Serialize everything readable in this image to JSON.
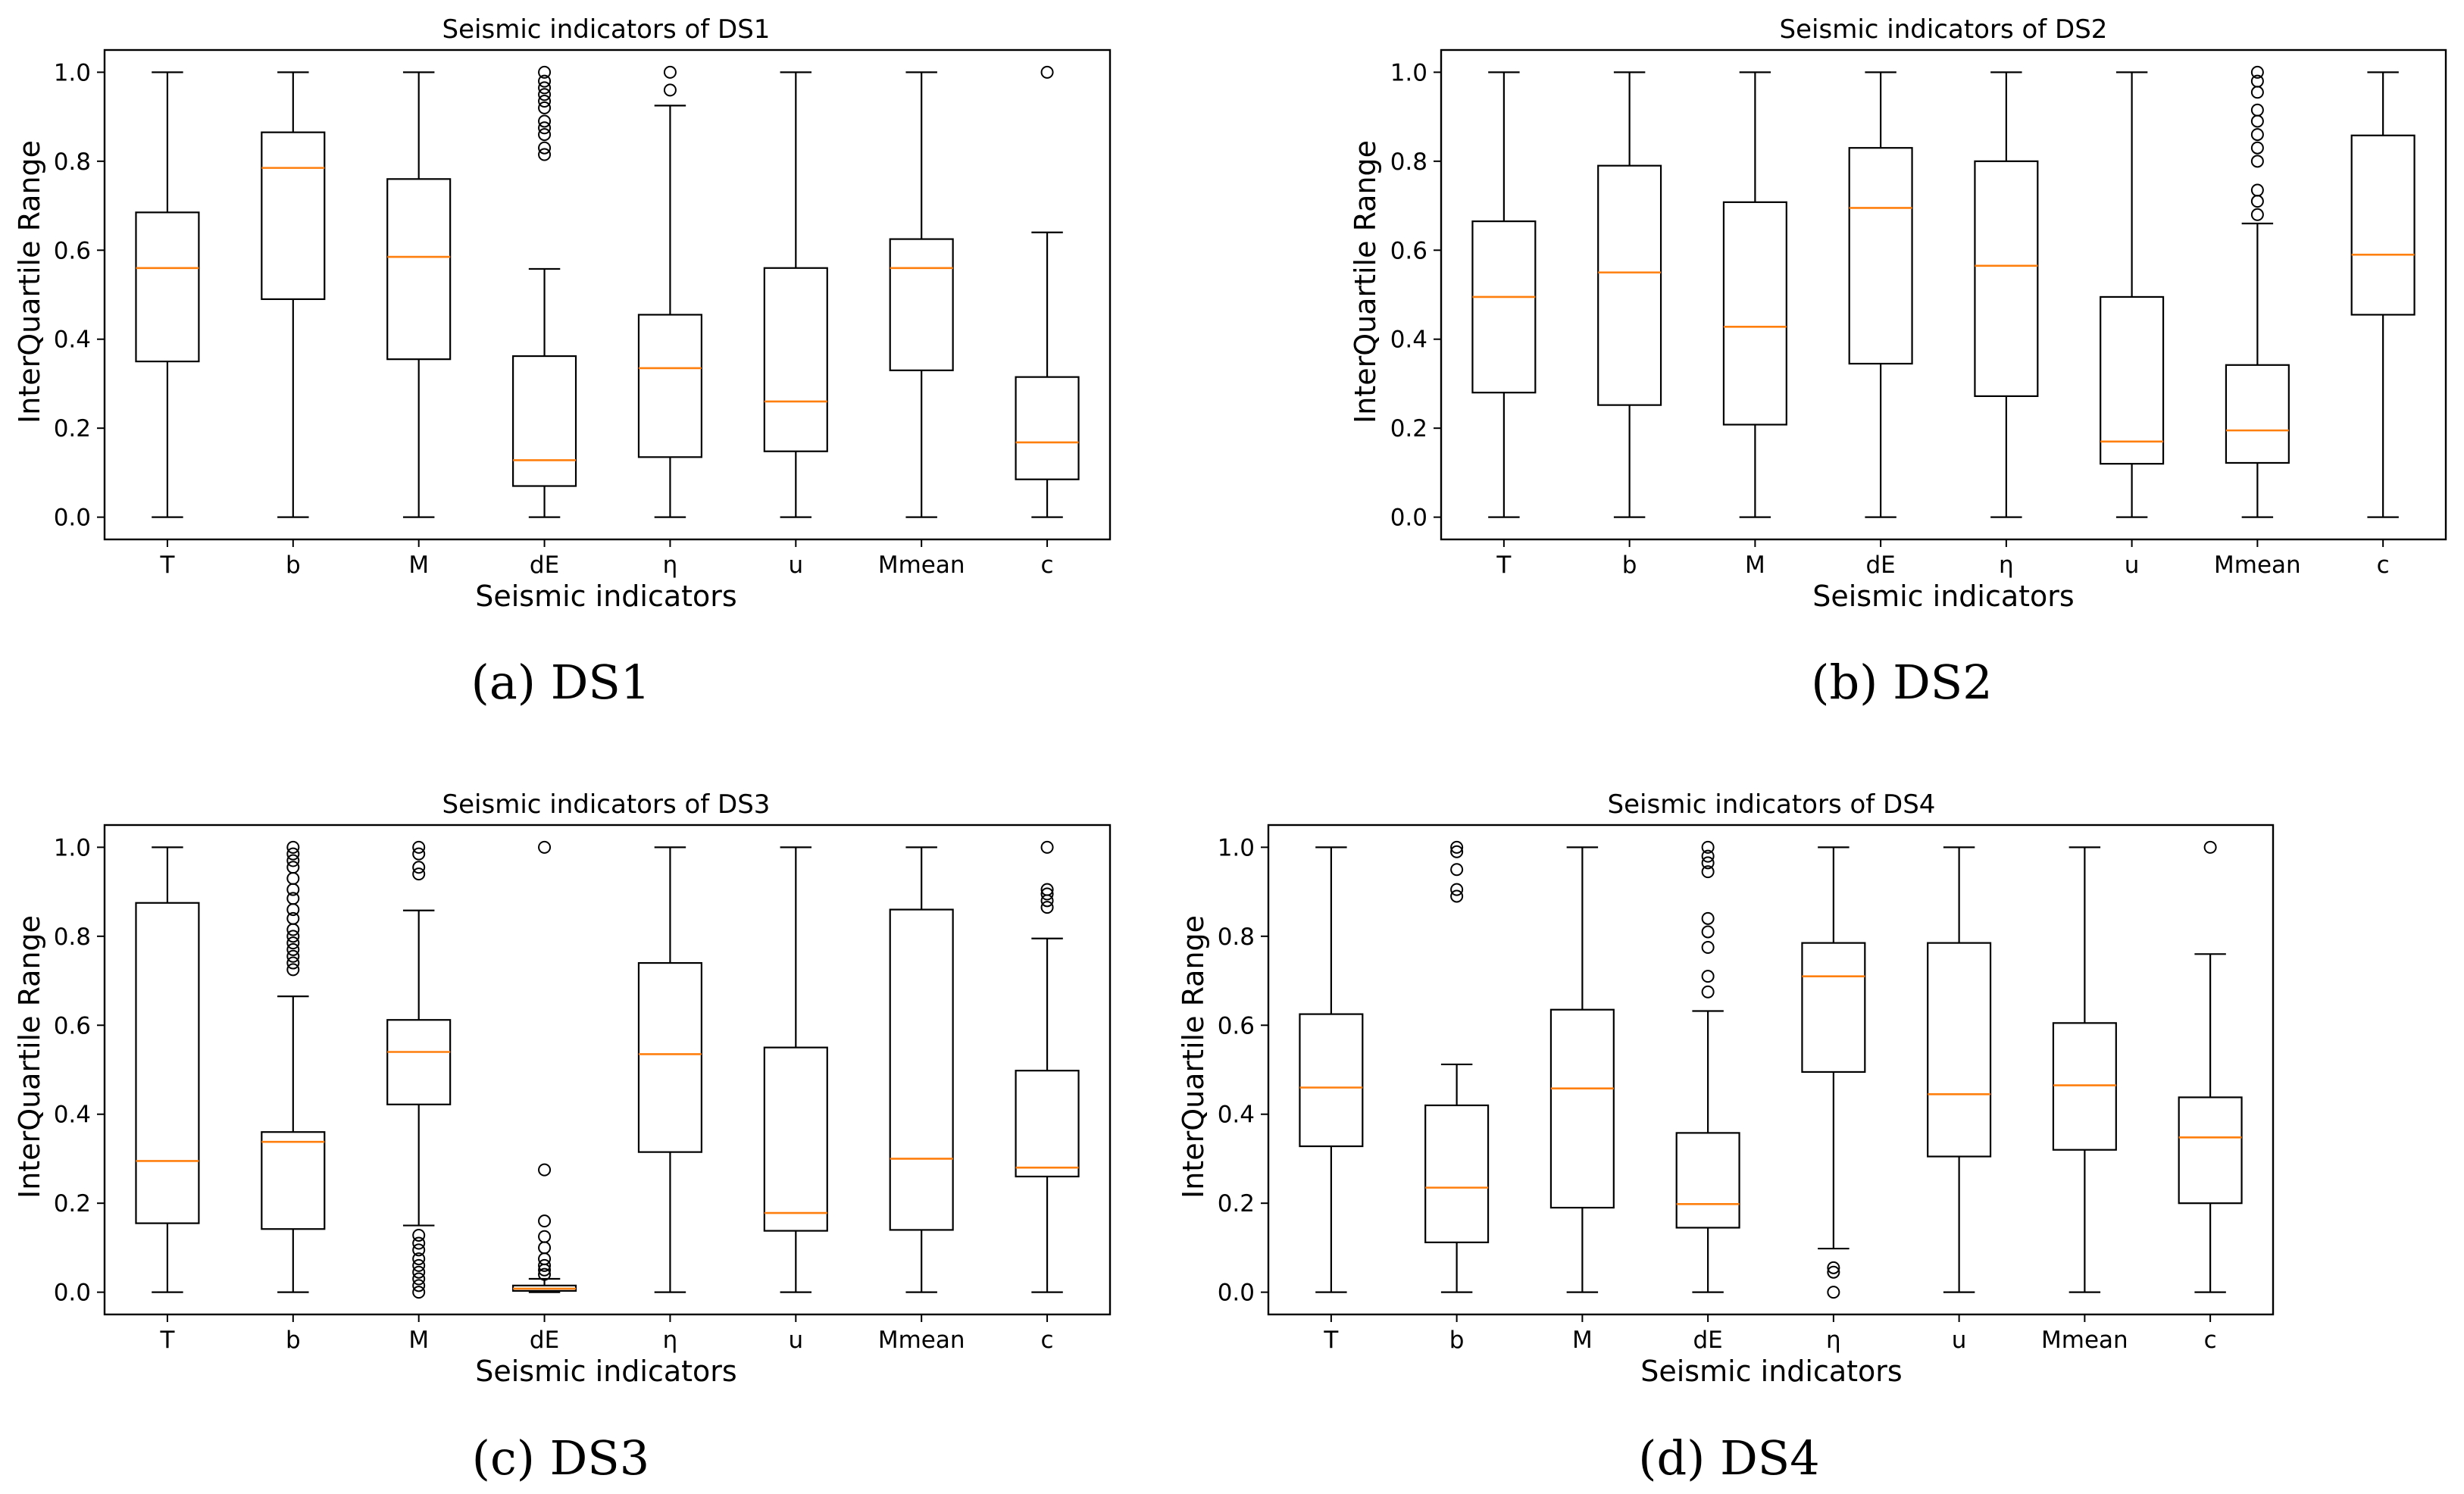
{
  "chart_data": [
    {
      "id": "a",
      "type": "boxplot",
      "caption": "(a)  DS1",
      "title": "Seismic indicators of DS1",
      "xlabel": "Seismic indicators",
      "ylabel": "InterQuartile Range",
      "ylim": [
        -0.05,
        1.05
      ],
      "yticks": [
        "0.0",
        "0.2",
        "0.4",
        "0.6",
        "0.8",
        "1.0"
      ],
      "colors": {
        "box": "#000000",
        "median": "#ff7f0e"
      },
      "categories": [
        "T",
        "b",
        "M",
        "dE",
        "η",
        "u",
        "Mmean",
        "c"
      ],
      "boxes": [
        {
          "label": "T",
          "whislo": 0.0,
          "q1": 0.35,
          "med": 0.56,
          "q3": 0.685,
          "whishi": 1.0,
          "fliers": []
        },
        {
          "label": "b",
          "whislo": 0.0,
          "q1": 0.49,
          "med": 0.785,
          "q3": 0.865,
          "whishi": 1.0,
          "fliers": []
        },
        {
          "label": "M",
          "whislo": 0.0,
          "q1": 0.355,
          "med": 0.585,
          "q3": 0.76,
          "whishi": 1.0,
          "fliers": []
        },
        {
          "label": "dE",
          "whislo": 0.0,
          "q1": 0.07,
          "med": 0.128,
          "q3": 0.362,
          "whishi": 0.558,
          "fliers": [
            0.815,
            0.83,
            0.86,
            0.875,
            0.89,
            0.92,
            0.935,
            0.95,
            0.965,
            0.98,
            1.0
          ]
        },
        {
          "label": "η",
          "whislo": 0.0,
          "q1": 0.135,
          "med": 0.335,
          "q3": 0.455,
          "whishi": 0.925,
          "fliers": [
            0.96,
            1.0
          ]
        },
        {
          "label": "u",
          "whislo": 0.0,
          "q1": 0.148,
          "med": 0.26,
          "q3": 0.56,
          "whishi": 1.0,
          "fliers": []
        },
        {
          "label": "Mmean",
          "whislo": 0.0,
          "q1": 0.33,
          "med": 0.56,
          "q3": 0.625,
          "whishi": 1.0,
          "fliers": []
        },
        {
          "label": "c",
          "whislo": 0.0,
          "q1": 0.085,
          "med": 0.168,
          "q3": 0.315,
          "whishi": 0.64,
          "fliers": [
            1.0
          ]
        }
      ]
    },
    {
      "id": "b",
      "type": "boxplot",
      "caption": "(b)  DS2",
      "title": "Seismic indicators of DS2",
      "xlabel": "Seismic indicators",
      "ylabel": "InterQuartile Range",
      "ylim": [
        -0.05,
        1.05
      ],
      "yticks": [
        "0.0",
        "0.2",
        "0.4",
        "0.6",
        "0.8",
        "1.0"
      ],
      "colors": {
        "box": "#000000",
        "median": "#ff7f0e"
      },
      "categories": [
        "T",
        "b",
        "M",
        "dE",
        "η",
        "u",
        "Mmean",
        "c"
      ],
      "boxes": [
        {
          "label": "T",
          "whislo": 0.0,
          "q1": 0.28,
          "med": 0.495,
          "q3": 0.665,
          "whishi": 1.0,
          "fliers": []
        },
        {
          "label": "b",
          "whislo": 0.0,
          "q1": 0.252,
          "med": 0.55,
          "q3": 0.79,
          "whishi": 1.0,
          "fliers": []
        },
        {
          "label": "M",
          "whislo": 0.0,
          "q1": 0.208,
          "med": 0.428,
          "q3": 0.708,
          "whishi": 1.0,
          "fliers": []
        },
        {
          "label": "dE",
          "whislo": 0.0,
          "q1": 0.345,
          "med": 0.695,
          "q3": 0.83,
          "whishi": 1.0,
          "fliers": []
        },
        {
          "label": "η",
          "whislo": 0.0,
          "q1": 0.272,
          "med": 0.565,
          "q3": 0.8,
          "whishi": 1.0,
          "fliers": []
        },
        {
          "label": "u",
          "whislo": 0.0,
          "q1": 0.12,
          "med": 0.17,
          "q3": 0.495,
          "whishi": 1.0,
          "fliers": []
        },
        {
          "label": "Mmean",
          "whislo": 0.0,
          "q1": 0.122,
          "med": 0.195,
          "q3": 0.342,
          "whishi": 0.66,
          "fliers": [
            0.68,
            0.71,
            0.735,
            0.8,
            0.83,
            0.86,
            0.89,
            0.915,
            0.955,
            0.98,
            1.0
          ]
        },
        {
          "label": "c",
          "whislo": 0.0,
          "q1": 0.455,
          "med": 0.59,
          "q3": 0.858,
          "whishi": 1.0,
          "fliers": []
        }
      ]
    },
    {
      "id": "c",
      "type": "boxplot",
      "caption": "(c)  DS3",
      "title": "Seismic indicators of DS3",
      "xlabel": "Seismic indicators",
      "ylabel": "InterQuartile Range",
      "ylim": [
        -0.05,
        1.05
      ],
      "yticks": [
        "0.0",
        "0.2",
        "0.4",
        "0.6",
        "0.8",
        "1.0"
      ],
      "colors": {
        "box": "#000000",
        "median": "#ff7f0e"
      },
      "categories": [
        "T",
        "b",
        "M",
        "dE",
        "η",
        "u",
        "Mmean",
        "c"
      ],
      "boxes": [
        {
          "label": "T",
          "whislo": 0.0,
          "q1": 0.155,
          "med": 0.295,
          "q3": 0.875,
          "whishi": 1.0,
          "fliers": []
        },
        {
          "label": "b",
          "whislo": 0.0,
          "q1": 0.142,
          "med": 0.338,
          "q3": 0.36,
          "whishi": 0.665,
          "fliers": [
            0.725,
            0.74,
            0.755,
            0.77,
            0.785,
            0.8,
            0.815,
            0.84,
            0.86,
            0.885,
            0.905,
            0.93,
            0.955,
            0.97,
            0.985,
            1.0
          ]
        },
        {
          "label": "M",
          "whislo": 0.15,
          "q1": 0.422,
          "med": 0.54,
          "q3": 0.612,
          "whishi": 0.858,
          "fliers": [
            0.0,
            0.015,
            0.03,
            0.045,
            0.06,
            0.075,
            0.095,
            0.11,
            0.128,
            0.94,
            0.955,
            0.985,
            1.0
          ]
        },
        {
          "label": "dE",
          "whislo": 0.0,
          "q1": 0.003,
          "med": 0.008,
          "q3": 0.015,
          "whishi": 0.03,
          "fliers": [
            0.04,
            0.05,
            0.06,
            0.075,
            0.1,
            0.125,
            0.16,
            0.275,
            1.0
          ]
        },
        {
          "label": "η",
          "whislo": 0.0,
          "q1": 0.315,
          "med": 0.535,
          "q3": 0.74,
          "whishi": 1.0,
          "fliers": []
        },
        {
          "label": "u",
          "whislo": 0.0,
          "q1": 0.138,
          "med": 0.178,
          "q3": 0.55,
          "whishi": 1.0,
          "fliers": []
        },
        {
          "label": "Mmean",
          "whislo": 0.0,
          "q1": 0.14,
          "med": 0.3,
          "q3": 0.86,
          "whishi": 1.0,
          "fliers": []
        },
        {
          "label": "c",
          "whislo": 0.0,
          "q1": 0.26,
          "med": 0.28,
          "q3": 0.498,
          "whishi": 0.795,
          "fliers": [
            0.865,
            0.88,
            0.895,
            0.905,
            1.0
          ]
        }
      ]
    },
    {
      "id": "d",
      "type": "boxplot",
      "caption": "(d)  DS4",
      "title": "Seismic indicators of DS4",
      "xlabel": "Seismic indicators",
      "ylabel": "InterQuartile Range",
      "ylim": [
        -0.05,
        1.05
      ],
      "yticks": [
        "0.0",
        "0.2",
        "0.4",
        "0.6",
        "0.8",
        "1.0"
      ],
      "colors": {
        "box": "#000000",
        "median": "#ff7f0e"
      },
      "categories": [
        "T",
        "b",
        "M",
        "dE",
        "η",
        "u",
        "Mmean",
        "c"
      ],
      "boxes": [
        {
          "label": "T",
          "whislo": 0.0,
          "q1": 0.328,
          "med": 0.46,
          "q3": 0.625,
          "whishi": 1.0,
          "fliers": []
        },
        {
          "label": "b",
          "whislo": 0.0,
          "q1": 0.112,
          "med": 0.235,
          "q3": 0.42,
          "whishi": 0.512,
          "fliers": [
            0.89,
            0.905,
            0.95,
            0.99,
            1.0
          ]
        },
        {
          "label": "M",
          "whislo": 0.0,
          "q1": 0.19,
          "med": 0.458,
          "q3": 0.635,
          "whishi": 1.0,
          "fliers": []
        },
        {
          "label": "dE",
          "whislo": 0.0,
          "q1": 0.145,
          "med": 0.198,
          "q3": 0.358,
          "whishi": 0.632,
          "fliers": [
            0.675,
            0.71,
            0.775,
            0.81,
            0.84,
            0.945,
            0.965,
            0.98,
            1.0
          ]
        },
        {
          "label": "η",
          "whislo": 0.098,
          "q1": 0.495,
          "med": 0.71,
          "q3": 0.785,
          "whishi": 1.0,
          "fliers": [
            0.0,
            0.045,
            0.055
          ]
        },
        {
          "label": "u",
          "whislo": 0.0,
          "q1": 0.305,
          "med": 0.445,
          "q3": 0.785,
          "whishi": 1.0,
          "fliers": []
        },
        {
          "label": "Mmean",
          "whislo": 0.0,
          "q1": 0.32,
          "med": 0.465,
          "q3": 0.605,
          "whishi": 1.0,
          "fliers": []
        },
        {
          "label": "c",
          "whislo": 0.0,
          "q1": 0.2,
          "med": 0.348,
          "q3": 0.438,
          "whishi": 0.76,
          "fliers": [
            1.0
          ]
        }
      ]
    }
  ]
}
